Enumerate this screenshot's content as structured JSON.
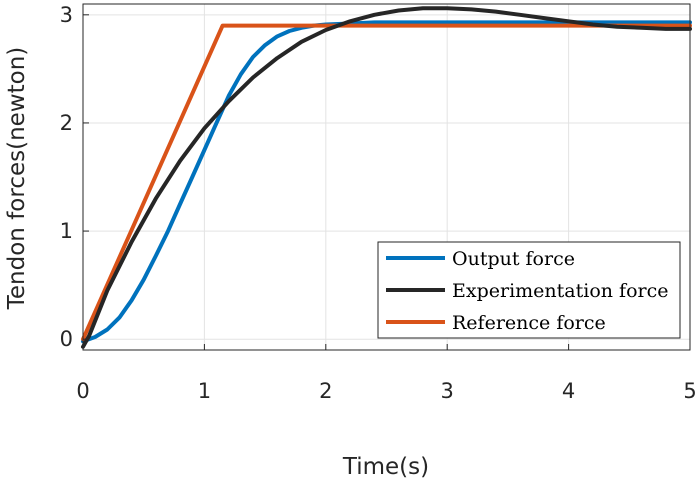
{
  "chart_data": {
    "type": "line",
    "title": "",
    "xlabel": "Time(s)",
    "ylabel": "Tendon forces(newton)",
    "xlim": [
      0,
      5
    ],
    "ylim": [
      -0.1,
      3.1
    ],
    "xticks": [
      0,
      1,
      2,
      3,
      4,
      5
    ],
    "xtick_labels": [
      "0",
      "1",
      "2",
      "3",
      "4",
      "5"
    ],
    "yticks": [
      0,
      1,
      2,
      3
    ],
    "ytick_labels": [
      "0",
      "1",
      "2",
      "3"
    ],
    "grid": true,
    "legend_position": "bottom-right",
    "series": [
      {
        "name": "Output force",
        "color": "#0072BD",
        "x": [
          0,
          0.1,
          0.2,
          0.3,
          0.4,
          0.5,
          0.6,
          0.7,
          0.8,
          0.9,
          1.0,
          1.1,
          1.2,
          1.3,
          1.4,
          1.5,
          1.6,
          1.7,
          1.8,
          1.9,
          2.0,
          2.2,
          2.4,
          2.6,
          2.8,
          3.0,
          3.5,
          4.0,
          4.5,
          5.0
        ],
        "y": [
          -0.02,
          0.02,
          0.09,
          0.2,
          0.36,
          0.55,
          0.77,
          1.0,
          1.25,
          1.5,
          1.75,
          2.0,
          2.25,
          2.45,
          2.61,
          2.72,
          2.8,
          2.85,
          2.88,
          2.9,
          2.91,
          2.92,
          2.93,
          2.93,
          2.93,
          2.93,
          2.93,
          2.93,
          2.93,
          2.93
        ]
      },
      {
        "name": "Experimentation force",
        "color": "#262626",
        "x": [
          0,
          0.05,
          0.2,
          0.4,
          0.6,
          0.8,
          1.0,
          1.2,
          1.4,
          1.6,
          1.8,
          2.0,
          2.2,
          2.4,
          2.6,
          2.8,
          3.0,
          3.2,
          3.4,
          3.6,
          3.8,
          4.0,
          4.2,
          4.4,
          4.6,
          4.8,
          5.0
        ],
        "y": [
          -0.07,
          0.03,
          0.45,
          0.9,
          1.3,
          1.65,
          1.95,
          2.2,
          2.42,
          2.6,
          2.75,
          2.86,
          2.94,
          3.0,
          3.04,
          3.06,
          3.06,
          3.05,
          3.03,
          3.0,
          2.97,
          2.94,
          2.91,
          2.89,
          2.88,
          2.87,
          2.87
        ]
      },
      {
        "name": "Reference force",
        "color": "#D95319",
        "x": [
          0,
          1.15,
          5.0
        ],
        "y": [
          0.0,
          2.9,
          2.9
        ]
      }
    ]
  }
}
